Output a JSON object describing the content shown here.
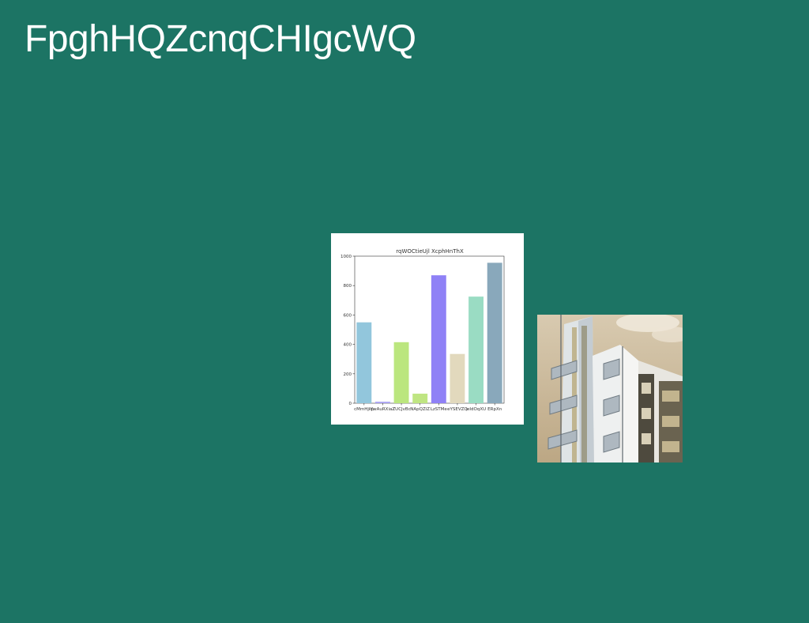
{
  "page": {
    "title": "FpghHQZcnqCHIgcWQ",
    "background_color": "#1c7464"
  },
  "photo": {
    "icon": "building-photo",
    "subject": "building"
  },
  "chart_data": {
    "type": "bar",
    "title": "rqWOCtieUjl XcphHnThX",
    "categories": [
      "cMmHjkp",
      "YwAuRXiaZ",
      "ZUCJvBc",
      "NApQZiZ",
      "LzSTMe",
      "eYSEVZQ",
      "wIdOqXU",
      "ERpXn"
    ],
    "values": [
      550,
      10,
      415,
      65,
      870,
      335,
      725,
      955
    ],
    "colors": [
      "#92c6dc",
      "#a9a2f2",
      "#bbe67e",
      "#bfe582",
      "#8f81f6",
      "#e2d9bd",
      "#9adcc3",
      "#89a8bb"
    ],
    "xlabel": "",
    "ylabel": "",
    "ylim": [
      0,
      1000
    ],
    "yticks": [
      0,
      200,
      400,
      600,
      800,
      1000
    ],
    "grid": false,
    "legend": "none"
  }
}
